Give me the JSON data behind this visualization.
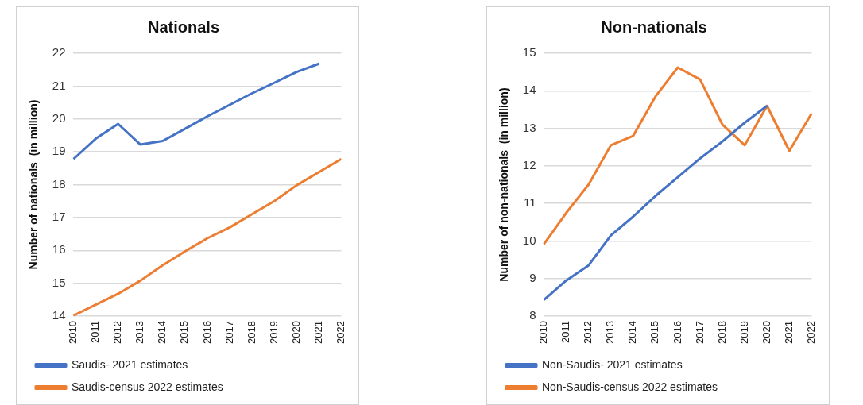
{
  "chart_data": [
    {
      "type": "line",
      "title": "Nationals",
      "ylabel": "Number of nationals  (in million)",
      "categories": [
        "2010",
        "2011",
        "2012",
        "2013",
        "2014",
        "2015",
        "2016",
        "2017",
        "2018",
        "2019",
        "2020",
        "2021",
        "2022"
      ],
      "series": [
        {
          "name": "Saudis- 2021 estimates",
          "color": "#4472c4",
          "values": [
            18.78,
            19.4,
            19.85,
            19.22,
            19.33,
            19.7,
            20.08,
            20.43,
            20.78,
            21.1,
            21.43,
            21.68,
            null
          ]
        },
        {
          "name": "Saudis-census 2022 estimates",
          "color": "#ed7d31",
          "values": [
            14.02,
            14.35,
            14.68,
            15.08,
            15.55,
            15.97,
            16.37,
            16.7,
            17.1,
            17.5,
            17.98,
            18.38,
            18.78
          ]
        }
      ],
      "ylim": [
        14,
        22
      ],
      "yticks": [
        14,
        15,
        16,
        17,
        18,
        19,
        20,
        21,
        22
      ],
      "grid": "y",
      "legend": "bottom"
    },
    {
      "type": "line",
      "title": "Non-nationals",
      "ylabel": "Number of non-nationals  (in million)",
      "categories": [
        "2010",
        "2011",
        "2012",
        "2013",
        "2014",
        "2015",
        "2016",
        "2017",
        "2018",
        "2019",
        "2020",
        "2021",
        "2022"
      ],
      "series": [
        {
          "name": "Non-Saudis- 2021 estimates",
          "color": "#4472c4",
          "values": [
            8.43,
            8.95,
            9.35,
            10.15,
            10.65,
            11.2,
            11.7,
            12.2,
            12.65,
            13.15,
            13.6,
            null,
            null
          ]
        },
        {
          "name": "Non-Saudis-census 2022 estimates",
          "color": "#ed7d31",
          "values": [
            9.92,
            10.75,
            11.5,
            12.55,
            12.8,
            13.85,
            14.62,
            14.3,
            13.1,
            12.55,
            13.6,
            12.4,
            13.4
          ]
        }
      ],
      "ylim": [
        8,
        15
      ],
      "yticks": [
        8,
        9,
        10,
        11,
        12,
        13,
        14,
        15
      ],
      "grid": "y",
      "legend": "bottom"
    }
  ]
}
